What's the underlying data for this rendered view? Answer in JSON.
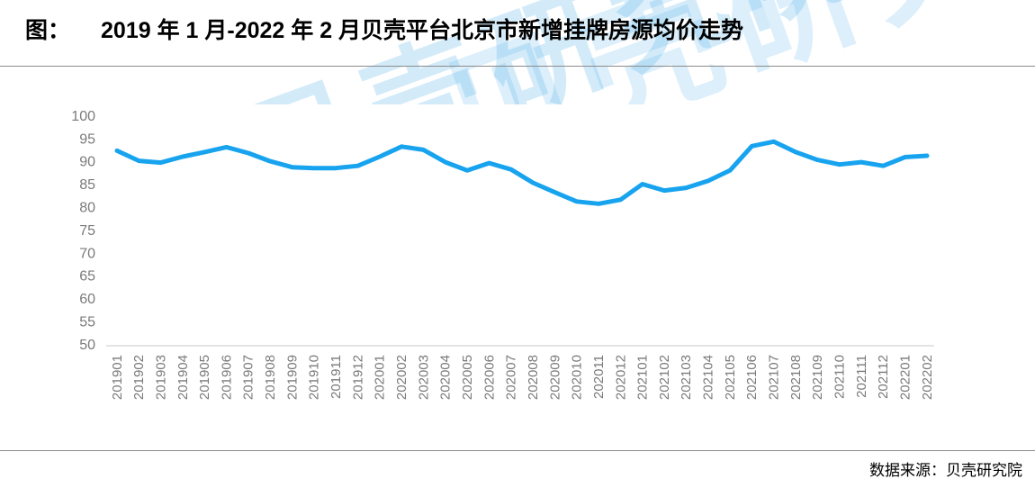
{
  "header": {
    "title_prefix": "图：",
    "title": "2019 年 1 月-2022 年 2 月贝壳平台北京市新增挂牌房源均价走势",
    "watermark_text": "贝壳研究院"
  },
  "footer": {
    "source_label": "数据来源：贝壳研究院"
  },
  "colors": {
    "line": "#18a3ef",
    "axis_text": "#7a7a7a",
    "axis_line": "#c9c9c9",
    "divider": "#8c8c8c",
    "watermark": "#9fd4f1"
  },
  "chart_data": {
    "type": "line",
    "title": "2019 年 1 月-2022 年 2 月贝壳平台北京市新增挂牌房源均价走势",
    "xlabel": "",
    "ylabel": "",
    "ylim": [
      50,
      100
    ],
    "ytick_interval": 5,
    "grid": false,
    "legend_position": "none",
    "categories": [
      "201901",
      "201902",
      "201903",
      "201904",
      "201905",
      "201906",
      "201907",
      "201908",
      "201909",
      "201910",
      "201911",
      "201912",
      "202001",
      "202002",
      "202003",
      "202004",
      "202005",
      "202006",
      "202007",
      "202008",
      "202009",
      "202010",
      "202011",
      "202012",
      "202101",
      "202102",
      "202103",
      "202104",
      "202105",
      "202106",
      "202107",
      "202108",
      "202109",
      "202110",
      "202111",
      "202112",
      "202201",
      "202202"
    ],
    "values": [
      92.3,
      90.1,
      89.7,
      91.0,
      92.0,
      93.1,
      91.8,
      90.0,
      88.7,
      88.5,
      88.5,
      89.0,
      91.0,
      93.2,
      92.5,
      89.8,
      88.0,
      89.6,
      88.2,
      85.3,
      83.2,
      81.2,
      80.7,
      81.6,
      85.0,
      83.6,
      84.2,
      85.7,
      88.0,
      93.3,
      94.3,
      92.0,
      90.3,
      89.3,
      89.8,
      89.0,
      90.9,
      91.2
    ]
  }
}
